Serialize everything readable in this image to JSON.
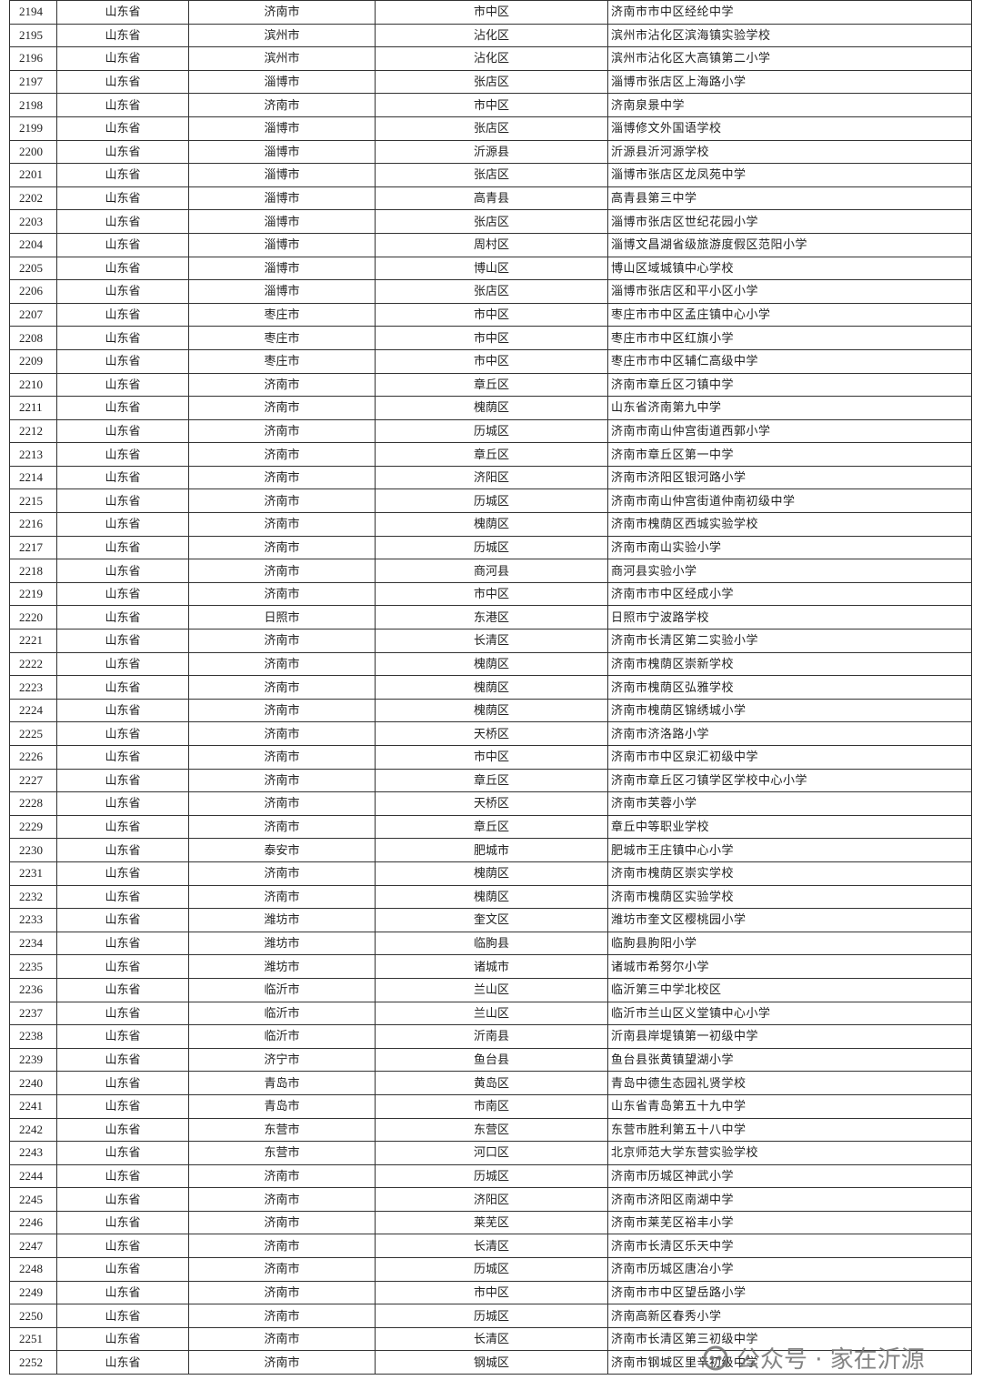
{
  "table": {
    "rows": [
      [
        2194,
        "山东省",
        "济南市",
        "市中区",
        "济南市市中区经纶中学"
      ],
      [
        2195,
        "山东省",
        "滨州市",
        "沾化区",
        "滨州市沾化区滨海镇实验学校"
      ],
      [
        2196,
        "山东省",
        "滨州市",
        "沾化区",
        "滨州市沾化区大高镇第二小学"
      ],
      [
        2197,
        "山东省",
        "淄博市",
        "张店区",
        "淄博市张店区上海路小学"
      ],
      [
        2198,
        "山东省",
        "济南市",
        "市中区",
        "济南泉景中学"
      ],
      [
        2199,
        "山东省",
        "淄博市",
        "张店区",
        "淄博修文外国语学校"
      ],
      [
        2200,
        "山东省",
        "淄博市",
        "沂源县",
        "沂源县沂河源学校"
      ],
      [
        2201,
        "山东省",
        "淄博市",
        "张店区",
        "淄博市张店区龙凤苑中学"
      ],
      [
        2202,
        "山东省",
        "淄博市",
        "高青县",
        "高青县第三中学"
      ],
      [
        2203,
        "山东省",
        "淄博市",
        "张店区",
        "淄博市张店区世纪花园小学"
      ],
      [
        2204,
        "山东省",
        "淄博市",
        "周村区",
        "淄博文昌湖省级旅游度假区范阳小学"
      ],
      [
        2205,
        "山东省",
        "淄博市",
        "博山区",
        "博山区域城镇中心学校"
      ],
      [
        2206,
        "山东省",
        "淄博市",
        "张店区",
        "淄博市张店区和平小区小学"
      ],
      [
        2207,
        "山东省",
        "枣庄市",
        "市中区",
        "枣庄市市中区孟庄镇中心小学"
      ],
      [
        2208,
        "山东省",
        "枣庄市",
        "市中区",
        "枣庄市市中区红旗小学"
      ],
      [
        2209,
        "山东省",
        "枣庄市",
        "市中区",
        "枣庄市市中区辅仁高级中学"
      ],
      [
        2210,
        "山东省",
        "济南市",
        "章丘区",
        "济南市章丘区刁镇中学"
      ],
      [
        2211,
        "山东省",
        "济南市",
        "槐荫区",
        "山东省济南第九中学"
      ],
      [
        2212,
        "山东省",
        "济南市",
        "历城区",
        "济南市南山仲宫街道西郭小学"
      ],
      [
        2213,
        "山东省",
        "济南市",
        "章丘区",
        "济南市章丘区第一中学"
      ],
      [
        2214,
        "山东省",
        "济南市",
        "济阳区",
        "济南市济阳区银河路小学"
      ],
      [
        2215,
        "山东省",
        "济南市",
        "历城区",
        "济南市南山仲宫街道仲南初级中学"
      ],
      [
        2216,
        "山东省",
        "济南市",
        "槐荫区",
        "济南市槐荫区西城实验学校"
      ],
      [
        2217,
        "山东省",
        "济南市",
        "历城区",
        "济南市南山实验小学"
      ],
      [
        2218,
        "山东省",
        "济南市",
        "商河县",
        "商河县实验小学"
      ],
      [
        2219,
        "山东省",
        "济南市",
        "市中区",
        "济南市市中区经成小学"
      ],
      [
        2220,
        "山东省",
        "日照市",
        "东港区",
        "日照市宁波路学校"
      ],
      [
        2221,
        "山东省",
        "济南市",
        "长清区",
        "济南市长清区第二实验小学"
      ],
      [
        2222,
        "山东省",
        "济南市",
        "槐荫区",
        "济南市槐荫区崇新学校"
      ],
      [
        2223,
        "山东省",
        "济南市",
        "槐荫区",
        "济南市槐荫区弘雅学校"
      ],
      [
        2224,
        "山东省",
        "济南市",
        "槐荫区",
        "济南市槐荫区锦绣城小学"
      ],
      [
        2225,
        "山东省",
        "济南市",
        "天桥区",
        "济南市济洛路小学"
      ],
      [
        2226,
        "山东省",
        "济南市",
        "市中区",
        "济南市市中区泉汇初级中学"
      ],
      [
        2227,
        "山东省",
        "济南市",
        "章丘区",
        "济南市章丘区刁镇学区学校中心小学"
      ],
      [
        2228,
        "山东省",
        "济南市",
        "天桥区",
        "济南市芙蓉小学"
      ],
      [
        2229,
        "山东省",
        "济南市",
        "章丘区",
        "章丘中等职业学校"
      ],
      [
        2230,
        "山东省",
        "泰安市",
        "肥城市",
        "肥城市王庄镇中心小学"
      ],
      [
        2231,
        "山东省",
        "济南市",
        "槐荫区",
        "济南市槐荫区崇实学校"
      ],
      [
        2232,
        "山东省",
        "济南市",
        "槐荫区",
        "济南市槐荫区实验学校"
      ],
      [
        2233,
        "山东省",
        "潍坊市",
        "奎文区",
        "潍坊市奎文区樱桃园小学"
      ],
      [
        2234,
        "山东省",
        "潍坊市",
        "临朐县",
        "临朐县朐阳小学"
      ],
      [
        2235,
        "山东省",
        "潍坊市",
        "诸城市",
        "诸城市希努尔小学"
      ],
      [
        2236,
        "山东省",
        "临沂市",
        "兰山区",
        "临沂第三中学北校区"
      ],
      [
        2237,
        "山东省",
        "临沂市",
        "兰山区",
        "临沂市兰山区义堂镇中心小学"
      ],
      [
        2238,
        "山东省",
        "临沂市",
        "沂南县",
        "沂南县岸堤镇第一初级中学"
      ],
      [
        2239,
        "山东省",
        "济宁市",
        "鱼台县",
        "鱼台县张黄镇望湖小学"
      ],
      [
        2240,
        "山东省",
        "青岛市",
        "黄岛区",
        "青岛中德生态园礼贤学校"
      ],
      [
        2241,
        "山东省",
        "青岛市",
        "市南区",
        "山东省青岛第五十九中学"
      ],
      [
        2242,
        "山东省",
        "东营市",
        "东营区",
        "东营市胜利第五十八中学"
      ],
      [
        2243,
        "山东省",
        "东营市",
        "河口区",
        "北京师范大学东营实验学校"
      ],
      [
        2244,
        "山东省",
        "济南市",
        "历城区",
        "济南市历城区神武小学"
      ],
      [
        2245,
        "山东省",
        "济南市",
        "济阳区",
        "济南市济阳区南湖中学"
      ],
      [
        2246,
        "山东省",
        "济南市",
        "莱芜区",
        "济南市莱芜区裕丰小学"
      ],
      [
        2247,
        "山东省",
        "济南市",
        "长清区",
        "济南市长清区乐天中学"
      ],
      [
        2248,
        "山东省",
        "济南市",
        "历城区",
        "济南市历城区唐冶小学"
      ],
      [
        2249,
        "山东省",
        "济南市",
        "市中区",
        "济南市市中区望岳路小学"
      ],
      [
        2250,
        "山东省",
        "济南市",
        "历城区",
        "济南高新区春秀小学"
      ],
      [
        2251,
        "山东省",
        "济南市",
        "长清区",
        "济南市长清区第三初级中学"
      ],
      [
        2252,
        "山东省",
        "济南市",
        "钢城区",
        "济南市钢城区里辛初级中学"
      ]
    ]
  },
  "watermark": "公众号 · 家在沂源"
}
